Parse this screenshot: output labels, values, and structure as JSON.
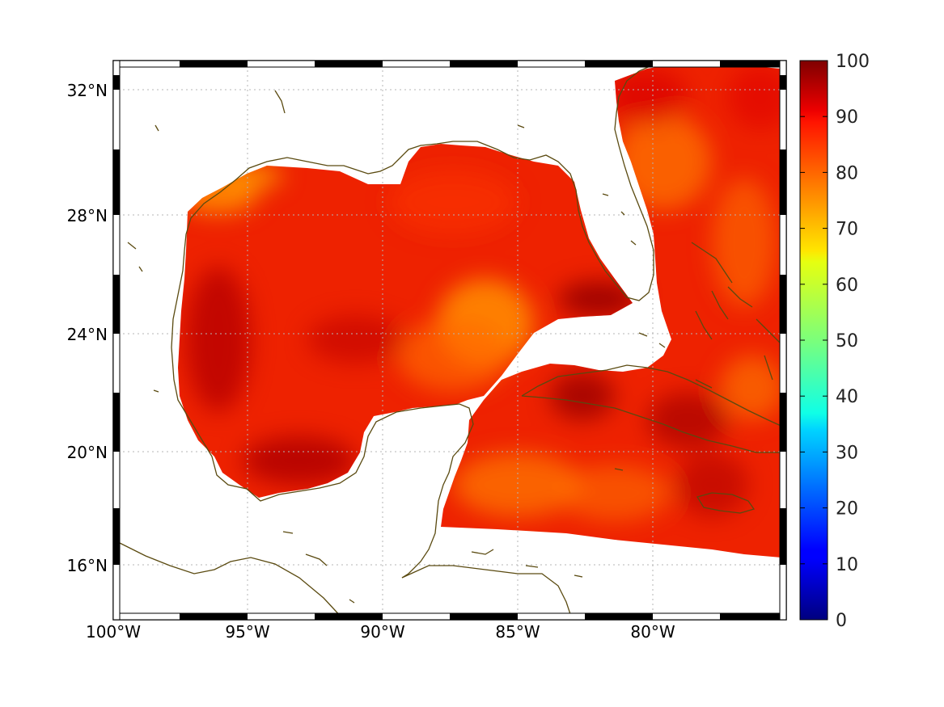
{
  "map": {
    "lon_labels": [
      "100°W",
      "95°W",
      "90°W",
      "85°W",
      "80°W"
    ],
    "lat_labels": [
      "32°N",
      "28°N",
      "24°N",
      "20°N",
      "16°N"
    ],
    "lon_range": [
      -100,
      -75
    ],
    "lat_range": [
      14.2,
      33
    ],
    "gridlines": true,
    "coastline_color": "#5a4a10",
    "colormap": "jet"
  },
  "colorbar": {
    "ticks": [
      "0",
      "10",
      "20",
      "30",
      "40",
      "50",
      "60",
      "70",
      "80",
      "90",
      "100"
    ],
    "range": [
      0,
      100
    ]
  }
}
